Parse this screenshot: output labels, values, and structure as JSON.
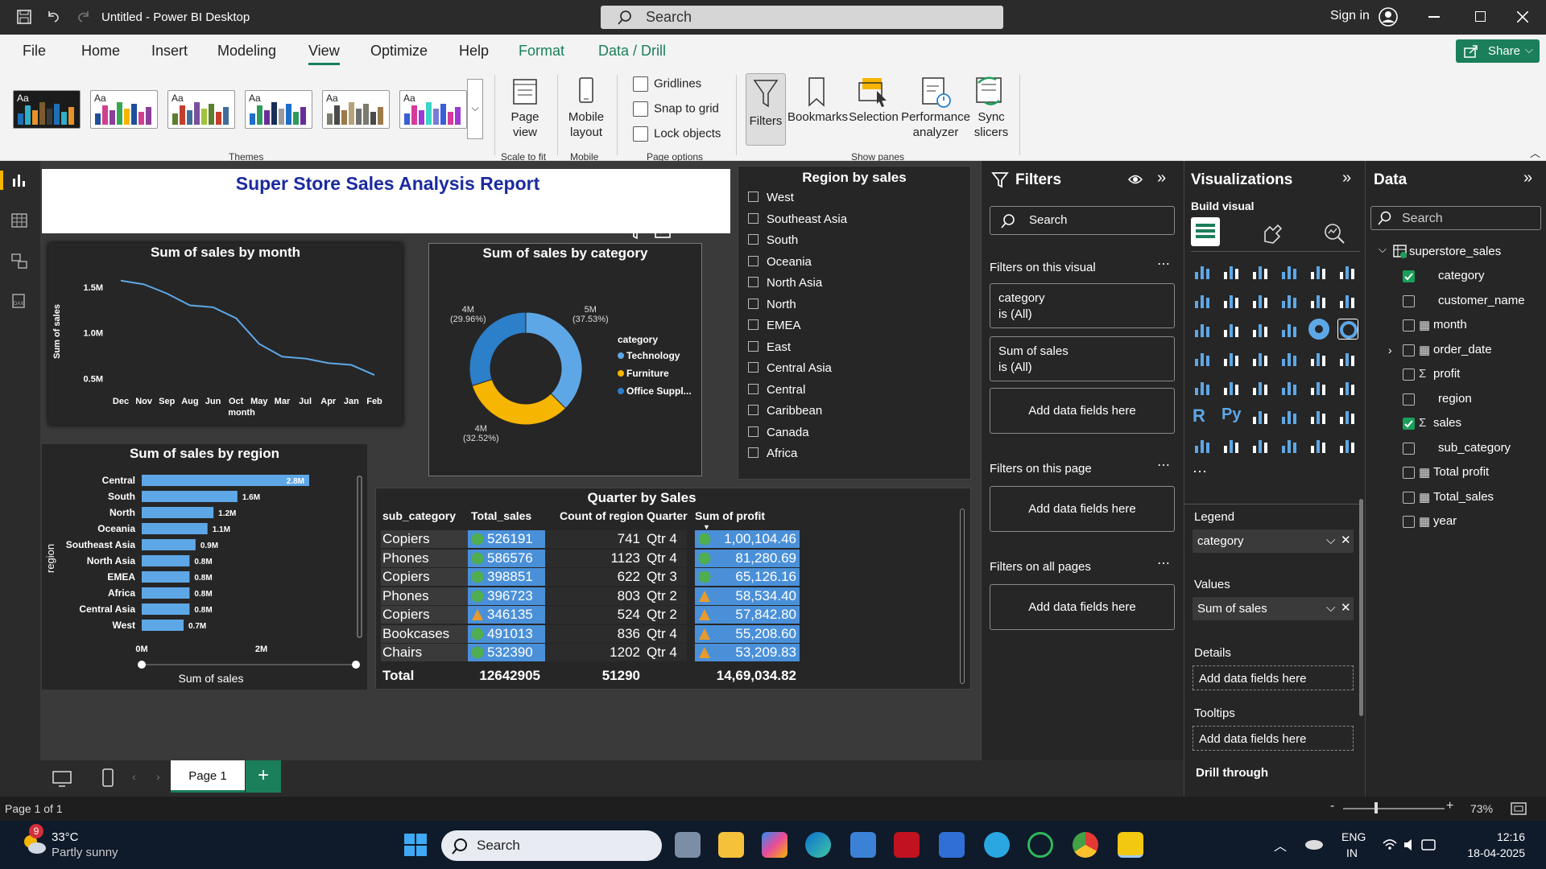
{
  "titlebar": {
    "title": "Untitled - Power BI Desktop",
    "search_placeholder": "Search",
    "sign_in": "Sign in"
  },
  "menu": {
    "items": [
      "File",
      "Home",
      "Insert",
      "Modeling",
      "View",
      "Optimize",
      "Help",
      "Format",
      "Data / Drill"
    ],
    "active": "View",
    "share": "Share"
  },
  "ribbon": {
    "themes_label": "Themes",
    "page_view": "Page view",
    "scale_to_fit": "Scale to fit",
    "mobile_layout": "Mobile layout",
    "mobile": "Mobile",
    "gridlines": "Gridlines",
    "snap_to_grid": "Snap to grid",
    "lock_objects": "Lock objects",
    "page_options": "Page options",
    "filters": "Filters",
    "bookmarks": "Bookmarks",
    "selection": "Selection",
    "performance_analyzer": "Performance analyzer",
    "sync_slicers": "Sync slicers",
    "show_panes": "Show panes"
  },
  "report": {
    "title": "Super Store Sales Analysis Report",
    "line_chart": {
      "title": "Sum of sales by month",
      "ylabel": "Sum of sales",
      "xlabel": "month"
    },
    "donut": {
      "title": "Sum of sales by category",
      "legend_title": "category"
    },
    "bar_chart": {
      "title": "Sum of sales by region",
      "ylabel": "region",
      "xlabel": "Sum of sales"
    },
    "slicer": {
      "title": "Region by sales",
      "items": [
        "West",
        "Southeast Asia",
        "South",
        "Oceania",
        "North Asia",
        "North",
        "EMEA",
        "East",
        "Central Asia",
        "Central",
        "Caribbean",
        "Canada",
        "Africa"
      ]
    },
    "table": {
      "title": "Quarter by Sales",
      "headers": [
        "sub_category",
        "Total_sales",
        "Count of region",
        "Quarter",
        "Sum of profit"
      ],
      "rows": [
        {
          "sub": "Copiers",
          "sales": "526191",
          "count": "741",
          "q": "Qtr 4",
          "profit": "1,00,104.46",
          "si": "circle",
          "pi": "circle"
        },
        {
          "sub": "Phones",
          "sales": "586576",
          "count": "1123",
          "q": "Qtr 4",
          "profit": "81,280.69",
          "si": "circle",
          "pi": "circle"
        },
        {
          "sub": "Copiers",
          "sales": "398851",
          "count": "622",
          "q": "Qtr 3",
          "profit": "65,126.16",
          "si": "circle",
          "pi": "circle"
        },
        {
          "sub": "Phones",
          "sales": "396723",
          "count": "803",
          "q": "Qtr 2",
          "profit": "58,534.40",
          "si": "circle",
          "pi": "triangle"
        },
        {
          "sub": "Copiers",
          "sales": "346135",
          "count": "524",
          "q": "Qtr 2",
          "profit": "57,842.80",
          "si": "triangle",
          "pi": "triangle"
        },
        {
          "sub": "Bookcases",
          "sales": "491013",
          "count": "836",
          "q": "Qtr 4",
          "profit": "55,208.60",
          "si": "circle",
          "pi": "triangle"
        },
        {
          "sub": "Chairs",
          "sales": "532390",
          "count": "1202",
          "q": "Qtr 4",
          "profit": "53,209.83",
          "si": "circle",
          "pi": "triangle"
        }
      ],
      "total": {
        "label": "Total",
        "sales": "12642905",
        "count": "51290",
        "profit": "14,69,034.82"
      }
    }
  },
  "chart_data": [
    {
      "type": "line",
      "title": "Sum of sales by month",
      "xlabel": "month",
      "ylabel": "Sum of sales",
      "categories": [
        "Dec",
        "Nov",
        "Sep",
        "Aug",
        "Jun",
        "Oct",
        "May",
        "Mar",
        "Jul",
        "Apr",
        "Jan",
        "Feb"
      ],
      "values": [
        1.57,
        1.53,
        1.43,
        1.3,
        1.28,
        1.16,
        0.88,
        0.74,
        0.72,
        0.67,
        0.65,
        0.54
      ],
      "yticks": [
        "1.5M",
        "1.0M",
        "0.5M"
      ],
      "ylim": [
        0.4,
        1.7
      ]
    },
    {
      "type": "pie",
      "title": "Sum of sales by category",
      "legend_title": "category",
      "series": [
        {
          "name": "Technology",
          "value": 37.53,
          "label": "5M",
          "pct": "(37.53%)",
          "color": "#5ea7e6"
        },
        {
          "name": "Furniture",
          "value": 32.52,
          "label": "4M",
          "pct": "(32.52%)",
          "color": "#f6b500"
        },
        {
          "name": "Office Suppl...",
          "value": 29.96,
          "label": "4M",
          "pct": "(29.96%)",
          "color": "#2c7fc9"
        }
      ]
    },
    {
      "type": "bar",
      "title": "Sum of sales by region",
      "xlabel": "Sum of sales",
      "ylabel": "region",
      "categories": [
        "Central",
        "South",
        "North",
        "Oceania",
        "Southeast Asia",
        "North Asia",
        "EMEA",
        "Africa",
        "Central Asia",
        "West"
      ],
      "values": [
        2.8,
        1.6,
        1.2,
        1.1,
        0.9,
        0.8,
        0.8,
        0.8,
        0.8,
        0.7
      ],
      "labels": [
        "2.8M",
        "1.6M",
        "1.2M",
        "1.1M",
        "0.9M",
        "0.8M",
        "0.8M",
        "0.8M",
        "0.8M",
        "0.7M"
      ],
      "xticks": [
        "0M",
        "2M"
      ],
      "xlim": [
        0,
        3.5
      ]
    }
  ],
  "filters_pane": {
    "title": "Filters",
    "search": "Search",
    "on_visual": "Filters on this visual",
    "cards": [
      {
        "field": "category",
        "value": "is (All)"
      },
      {
        "field": "Sum of sales",
        "value": "is (All)"
      }
    ],
    "add": "Add data fields here",
    "on_page": "Filters on this page",
    "on_all": "Filters on all pages"
  },
  "viz_pane": {
    "title": "Visualizations",
    "build": "Build visual",
    "legend": "Legend",
    "legend_field": "category",
    "values": "Values",
    "values_field": "Sum of sales",
    "details": "Details",
    "tooltips": "Tooltips",
    "add": "Add data fields here",
    "drill": "Drill through"
  },
  "data_pane": {
    "title": "Data",
    "search": "Search",
    "table": "superstore_sales",
    "fields": [
      {
        "name": "category",
        "checked": true,
        "icon": ""
      },
      {
        "name": "customer_name",
        "checked": false,
        "icon": ""
      },
      {
        "name": "month",
        "checked": false,
        "icon": "calc"
      },
      {
        "name": "order_date",
        "checked": false,
        "icon": "calc"
      },
      {
        "name": "profit",
        "checked": false,
        "icon": "sigma"
      },
      {
        "name": "region",
        "checked": false,
        "icon": ""
      },
      {
        "name": "sales",
        "checked": true,
        "icon": "sigma"
      },
      {
        "name": "sub_category",
        "checked": false,
        "icon": ""
      },
      {
        "name": "Total profit",
        "checked": false,
        "icon": "calc"
      },
      {
        "name": "Total_sales",
        "checked": false,
        "icon": "calc"
      },
      {
        "name": "year",
        "checked": false,
        "icon": "calc"
      }
    ]
  },
  "tabs": {
    "page": "Page 1"
  },
  "status": {
    "page": "Page 1 of 1",
    "zoom": "73%"
  },
  "taskbar": {
    "temp": "33°C",
    "weather": "Partly sunny",
    "badge": "9",
    "search": "Search",
    "lang1": "ENG",
    "lang2": "IN",
    "time": "12:16",
    "date": "18-04-2025"
  }
}
